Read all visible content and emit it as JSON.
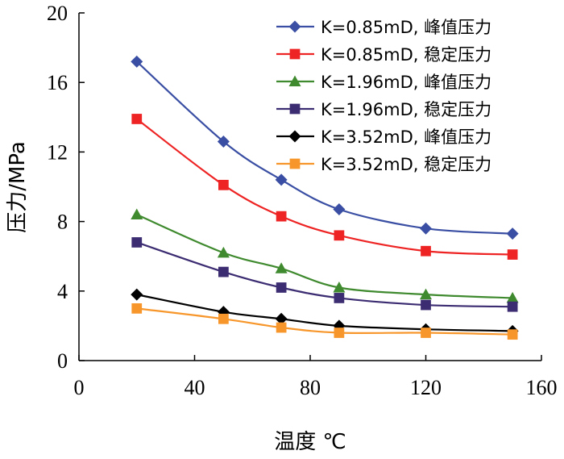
{
  "chart_data": {
    "type": "line",
    "title": "",
    "xlabel": "温度 ℃",
    "ylabel": "压力/MPa",
    "xlim": [
      0,
      160
    ],
    "ylim": [
      0,
      20
    ],
    "xticks": [
      0,
      40,
      80,
      120,
      160
    ],
    "yticks": [
      0,
      4,
      8,
      12,
      16,
      20
    ],
    "grid": false,
    "legend_position": "top-right",
    "x": [
      20,
      50,
      70,
      90,
      120,
      150
    ],
    "series": [
      {
        "name": "K=0.85mD, 峰值压力",
        "values": [
          17.2,
          12.6,
          10.4,
          8.7,
          7.6,
          7.3
        ],
        "color": "#3a4fa3",
        "marker": "diamond"
      },
      {
        "name": "K=0.85mD, 稳定压力",
        "values": [
          13.9,
          10.1,
          8.3,
          7.2,
          6.3,
          6.1
        ],
        "color": "#ee2424",
        "marker": "square"
      },
      {
        "name": "K=1.96mD, 峰值压力",
        "values": [
          8.4,
          6.2,
          5.3,
          4.2,
          3.8,
          3.6
        ],
        "color": "#3f8a2e",
        "marker": "triangle"
      },
      {
        "name": "K=1.96mD, 稳定压力",
        "values": [
          6.8,
          5.1,
          4.2,
          3.6,
          3.2,
          3.1
        ],
        "color": "#3c2c72",
        "marker": "square"
      },
      {
        "name": "K=3.52mD, 峰值压力",
        "values": [
          3.8,
          2.8,
          2.4,
          2.0,
          1.8,
          1.7
        ],
        "color": "#000000",
        "marker": "diamond"
      },
      {
        "name": "K=3.52mD, 稳定压力",
        "values": [
          3.0,
          2.4,
          1.9,
          1.6,
          1.6,
          1.5
        ],
        "color": "#f7962a",
        "marker": "square"
      }
    ]
  }
}
